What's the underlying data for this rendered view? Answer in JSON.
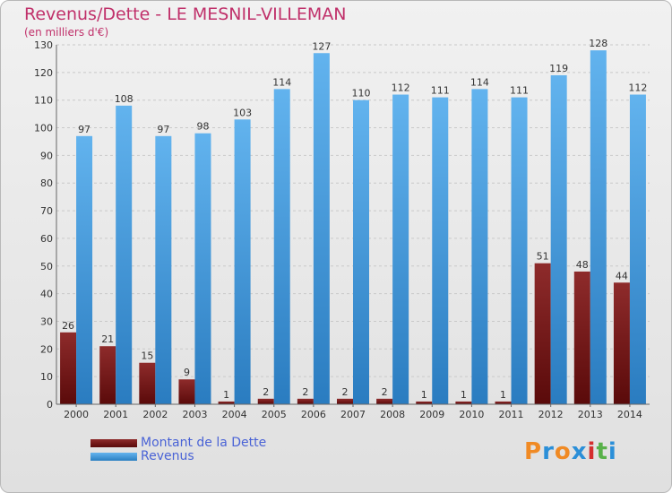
{
  "title": "Revenus/Dette - LE MESNIL-VILLEMAN",
  "subtitle": "(en milliers d'€)",
  "logo_text": "Proxiti",
  "colors": {
    "dette": "#6e1414",
    "revenus": "#4ca3e4",
    "title": "#c0306a",
    "legend_text": "#4a63d6"
  },
  "chart_data": {
    "type": "bar",
    "categories": [
      "2000",
      "2001",
      "2002",
      "2003",
      "2004",
      "2005",
      "2006",
      "2007",
      "2008",
      "2009",
      "2010",
      "2011",
      "2012",
      "2013",
      "2014"
    ],
    "series": [
      {
        "name": "Montant de la Dette",
        "values": [
          26,
          21,
          15,
          9,
          1,
          2,
          2,
          2,
          2,
          1,
          1,
          1,
          51,
          48,
          44
        ]
      },
      {
        "name": "Revenus",
        "values": [
          97,
          108,
          97,
          98,
          103,
          114,
          127,
          110,
          112,
          111,
          114,
          111,
          119,
          128,
          112
        ]
      }
    ],
    "ylim": [
      0,
      130
    ],
    "yticks": [
      0,
      10,
      20,
      30,
      40,
      50,
      60,
      70,
      80,
      90,
      100,
      110,
      120,
      130
    ],
    "grid": true,
    "legend": "bottom-left"
  }
}
